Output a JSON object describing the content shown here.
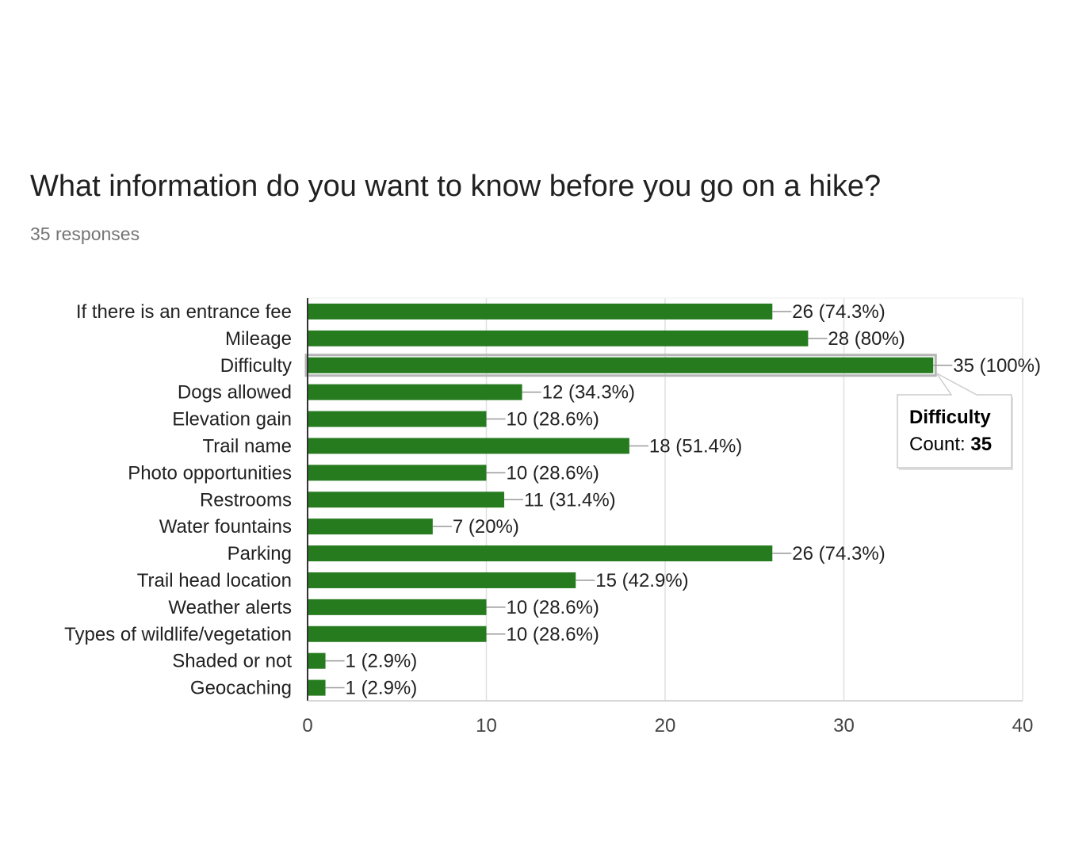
{
  "header": {
    "question": "What information do you want to know before you go on a hike?",
    "responses": "35 responses"
  },
  "colors": {
    "bar": "#267b1f",
    "grid": "#e0e0e0",
    "axis": "#333333",
    "leader": "#999999"
  },
  "chart_data": {
    "type": "bar",
    "orientation": "horizontal",
    "title": "What information do you want to know before you go on a hike?",
    "subtitle": "35 responses",
    "categories": [
      "If there is an entrance fee",
      "Mileage",
      "Difficulty",
      "Dogs allowed",
      "Elevation gain",
      "Trail name",
      "Photo opportunities",
      "Restrooms",
      "Water fountains",
      "Parking",
      "Trail head location",
      "Weather alerts",
      "Types of wildlife/vegetation",
      "Shaded or not",
      "Geocaching"
    ],
    "values": [
      26,
      28,
      35,
      12,
      10,
      18,
      10,
      11,
      7,
      26,
      15,
      10,
      10,
      1,
      1
    ],
    "data_labels": [
      "26 (74.3%)",
      "28 (80%)",
      "35 (100%)",
      "12 (34.3%)",
      "10 (28.6%)",
      "18 (51.4%)",
      "10 (28.6%)",
      "11 (31.4%)",
      "7 (20%)",
      "26 (74.3%)",
      "15 (42.9%)",
      "10 (28.6%)",
      "10 (28.6%)",
      "1 (2.9%)",
      "1 (2.9%)"
    ],
    "xlim": [
      0,
      40
    ],
    "xticks": [
      0,
      10,
      20,
      30,
      40
    ],
    "xtick_labels": [
      "0",
      "10",
      "20",
      "30",
      "40"
    ],
    "grid": true,
    "highlighted_index": 2,
    "tooltip": {
      "title": "Difficulty",
      "label": "Count: ",
      "value": "35"
    }
  }
}
